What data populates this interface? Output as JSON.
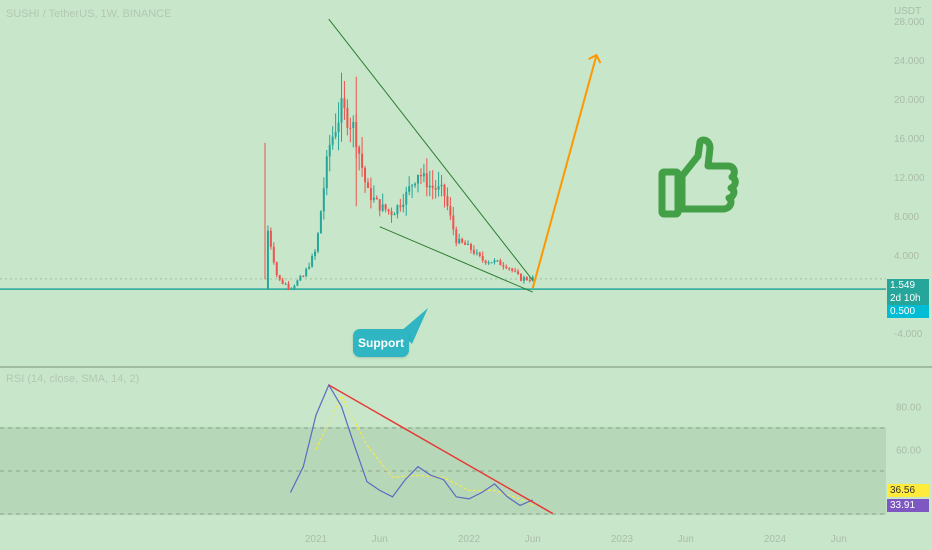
{
  "header": {
    "symbol_line": "SUSHI / TetherUS, 1W, BINANCE"
  },
  "price_axis": {
    "unit": "USDT",
    "ticks": [
      "28.000",
      "24.000",
      "20.000",
      "16.000",
      "12.000",
      "8.000",
      "4.000",
      "-4.000"
    ]
  },
  "rsi_header": {
    "label": "RSI (14, close, SMA, 14, 2)"
  },
  "rsi_axis": {
    "ticks": [
      "80.00",
      "60.00"
    ]
  },
  "time_axis": {
    "labels": [
      "2021",
      "Jun",
      "2022",
      "Jun",
      "2023",
      "Jun",
      "2024",
      "Jun"
    ]
  },
  "tags": {
    "last_price": "1.549",
    "countdown": "2d 10h",
    "support_level": "0.500",
    "rsi_value": "36.56",
    "rsi_sma_value": "33.91"
  },
  "annotations": {
    "support_label": "Support"
  },
  "colors": {
    "background": "#c8e6c9",
    "candle_up": "#26a69a",
    "candle_down": "#ef5350",
    "support_line": "#26a69a",
    "wedge_lines": "#2e7d32",
    "projection_arrow": "#ff9800",
    "rsi_line": "#5c6bc0",
    "rsi_sma": "#ffeb3b",
    "rsi_trendline": "#e53935",
    "thumb_icon": "#43a047",
    "support_bubble": "#2fb6c2"
  },
  "icons": {
    "thumb": "thumbs-up-icon"
  },
  "chart_data": [
    {
      "type": "candlestick",
      "title": "SUSHI / TetherUS, 1W, BINANCE",
      "ylabel": "USDT",
      "ylim": [
        -6,
        30
      ],
      "x_range": [
        "2020-08",
        "2024-08"
      ],
      "series": [
        {
          "name": "price_path",
          "points": [
            [
              "2020-09",
              0.5
            ],
            [
              "2020-09",
              8.0
            ],
            [
              "2020-10",
              1.5
            ],
            [
              "2020-11",
              0.7
            ],
            [
              "2020-12",
              1.8
            ],
            [
              "2021-01",
              4.5
            ],
            [
              "2021-02",
              15.0
            ],
            [
              "2021-03",
              19.0
            ],
            [
              "2021-04",
              17.0
            ],
            [
              "2021-05",
              10.5
            ],
            [
              "2021-06",
              9.0
            ],
            [
              "2021-07",
              8.3
            ],
            [
              "2021-08",
              10.0
            ],
            [
              "2021-09",
              12.5
            ],
            [
              "2021-10",
              11.0
            ],
            [
              "2021-11",
              10.5
            ],
            [
              "2021-12",
              5.5
            ],
            [
              "2022-01",
              4.8
            ],
            [
              "2022-02",
              3.5
            ],
            [
              "2022-03",
              3.3
            ],
            [
              "2022-04",
              2.9
            ],
            [
              "2022-05",
              1.6
            ],
            [
              "2022-06",
              1.55
            ]
          ]
        }
      ],
      "support_level": 0.5,
      "last_price": 1.549,
      "wedge_upper": [
        [
          "2021-02",
          28.2
        ],
        [
          "2022-06",
          1.4
        ]
      ],
      "wedge_lower": [
        [
          "2021-06",
          6.9
        ],
        [
          "2022-06",
          0.2
        ]
      ],
      "projection": [
        [
          "2022-06",
          0.6
        ],
        [
          "2022-11",
          24.5
        ]
      ]
    },
    {
      "type": "line",
      "title": "RSI (14, close, SMA, 14, 2)",
      "ylim": [
        25,
        95
      ],
      "levels": [
        70,
        50,
        30
      ],
      "series": [
        {
          "name": "RSI",
          "points": [
            [
              "2020-11",
              40
            ],
            [
              "2020-12",
              52
            ],
            [
              "2021-01",
              76
            ],
            [
              "2021-02",
              90
            ],
            [
              "2021-03",
              80
            ],
            [
              "2021-04",
              62
            ],
            [
              "2021-05",
              45
            ],
            [
              "2021-06",
              41
            ],
            [
              "2021-07",
              38
            ],
            [
              "2021-08",
              46
            ],
            [
              "2021-09",
              52
            ],
            [
              "2021-10",
              48
            ],
            [
              "2021-11",
              46
            ],
            [
              "2021-12",
              38
            ],
            [
              "2022-01",
              37
            ],
            [
              "2022-02",
              40
            ],
            [
              "2022-03",
              44
            ],
            [
              "2022-04",
              38
            ],
            [
              "2022-05",
              34
            ],
            [
              "2022-06",
              36.56
            ]
          ]
        },
        {
          "name": "SMA",
          "points": [
            [
              "2021-01",
              60
            ],
            [
              "2021-03",
              85
            ],
            [
              "2021-05",
              62
            ],
            [
              "2021-07",
              47
            ],
            [
              "2021-09",
              48
            ],
            [
              "2021-11",
              47
            ],
            [
              "2022-01",
              41
            ],
            [
              "2022-03",
              41
            ],
            [
              "2022-05",
              37
            ],
            [
              "2022-06",
              33.91
            ]
          ]
        }
      ],
      "trendline": [
        [
          "2021-02",
          90
        ],
        [
          "2022-06",
          33
        ]
      ],
      "last_rsi": 36.56,
      "last_sma": 33.91
    }
  ]
}
